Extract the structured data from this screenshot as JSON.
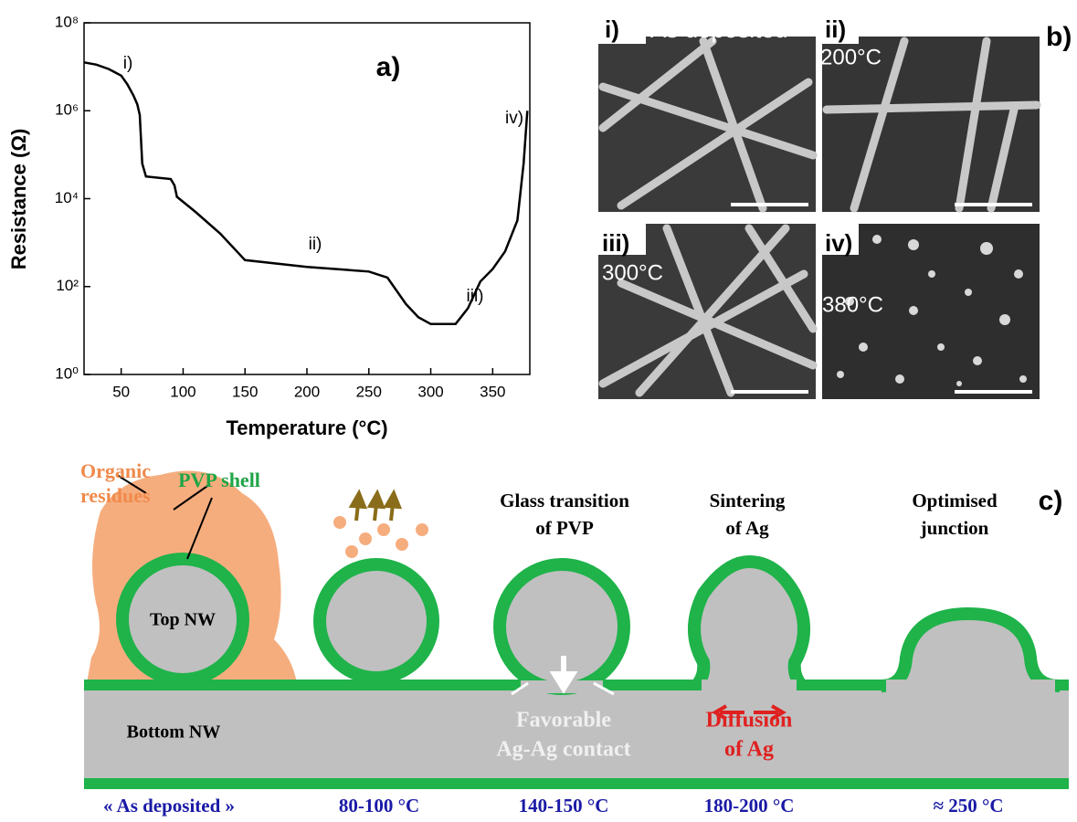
{
  "chart_data": {
    "type": "line",
    "panel_label": "a)",
    "xlabel": "Temperature (°C)",
    "ylabel": "Resistance (Ω)",
    "x": [
      20,
      30,
      40,
      50,
      55,
      60,
      63,
      65,
      67,
      70,
      90,
      93,
      95,
      110,
      130,
      150,
      200,
      250,
      265,
      280,
      290,
      300,
      320,
      330,
      340,
      350,
      360,
      370,
      375,
      378
    ],
    "values": [
      12600000,
      11200000,
      8900000,
      6300000,
      4000000,
      2200000,
      1400000,
      800000,
      63000,
      32000,
      28000,
      20000,
      11000,
      5000,
      1600,
      400,
      280,
      220,
      160,
      40,
      20,
      14,
      14,
      32,
      130,
      250,
      630,
      3200,
      63000,
      1000000
    ],
    "color": "#000000",
    "xlim": [
      20,
      380
    ],
    "ylim": [
      1,
      100000000
    ],
    "log_y": true,
    "xticks": [
      50,
      100,
      150,
      200,
      250,
      300,
      350
    ],
    "yticks": [
      {
        "value": 1,
        "label": "10⁰"
      },
      {
        "value": 100,
        "label": "10²"
      },
      {
        "value": 10000,
        "label": "10⁴"
      },
      {
        "value": 1000000,
        "label": "10⁶"
      },
      {
        "value": 100000000,
        "label": "10⁸"
      }
    ],
    "annotations": [
      "i)",
      "ii)",
      "iii)",
      "iv)"
    ]
  },
  "sem_panel": {
    "label": "b)",
    "images": [
      {
        "index": "i)",
        "caption": "As deposited"
      },
      {
        "index": "ii)",
        "caption": "200°C"
      },
      {
        "index": "iii)",
        "caption": "300°C"
      },
      {
        "index": "iv)",
        "caption": "380°C"
      }
    ]
  },
  "diagram": {
    "label": "c)",
    "organic_residues": [
      "Organic",
      "residues"
    ],
    "pvp_shell": "PVP shell",
    "top_nw": "Top NW",
    "bottom_nw": "Bottom NW",
    "stages": [
      [
        "Glass transition",
        "of PVP"
      ],
      [
        "Sintering",
        "of Ag"
      ],
      [
        "Optimised",
        "junction"
      ]
    ],
    "contact": [
      "Favorable",
      "Ag-Ag contact"
    ],
    "diffusion": [
      "Diffusion",
      "of Ag"
    ],
    "temperatures": [
      "« As deposited »",
      "80-100 °C",
      "140-150 °C",
      "180-200 °C",
      "≈ 250 °C"
    ]
  }
}
